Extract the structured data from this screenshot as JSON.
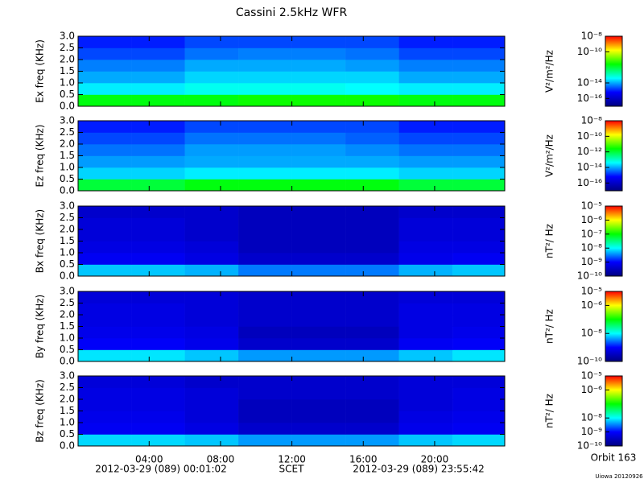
{
  "title": "Cassini 2.5kHz WFR",
  "start_label": "2012-03-29 (089) 00:01:02",
  "axis_label": "SCET",
  "end_label": "2012-03-29 (089) 23:55:42",
  "orbit": "Orbit 163",
  "credit": "Uiowa 20120926",
  "chart_data": [
    {
      "type": "heatmap",
      "ylabel": "Ex freq (KHz)",
      "zlabel": "V²/m²/Hz",
      "xlim": [
        0.0172,
        23.928
      ],
      "ylim": [
        0,
        3
      ],
      "yticks": [
        {
          "value": 0,
          "label": "0.0"
        },
        0.5,
        {
          "value": 1,
          "label": "1.0"
        },
        1.5,
        {
          "value": 2,
          "label": "2.0"
        },
        2.5,
        {
          "value": 3,
          "label": "3.0"
        }
      ],
      "xbins": [
        0.0172,
        3,
        6,
        9,
        12,
        15,
        18,
        21,
        23.928
      ],
      "ybins": [
        0,
        0.5,
        1,
        1.5,
        2,
        2.5,
        3
      ],
      "z": [
        [
          2e-12,
          2e-12,
          2e-12,
          3e-12,
          3e-12,
          3e-12,
          2e-12,
          2e-12
        ],
        [
          3e-14,
          3e-14,
          5e-14,
          5e-14,
          5e-14,
          4e-14,
          3e-14,
          3e-14
        ],
        [
          1e-14,
          1e-14,
          2e-14,
          2e-14,
          2e-14,
          2e-14,
          1e-14,
          1e-14
        ],
        [
          5e-15,
          5e-15,
          1e-14,
          1e-14,
          1e-14,
          8e-15,
          5e-15,
          5e-15
        ],
        [
          2e-15,
          2e-15,
          4e-15,
          5e-15,
          5e-15,
          4e-15,
          2e-15,
          2e-15
        ],
        [
          1e-15,
          1e-15,
          2e-15,
          2e-15,
          2e-15,
          2e-15,
          1e-15,
          1e-15
        ]
      ],
      "zlim": [
        1e-17,
        1e-08
      ],
      "zscale": "log",
      "zticks": [
        {
          "value": 1e-08,
          "label": "10⁻⁸"
        },
        {
          "value": 1e-10,
          "label": "10⁻¹⁰"
        },
        {
          "value": 1e-14,
          "label": "10⁻¹⁴"
        },
        {
          "value": 1e-16,
          "label": "10⁻¹⁶"
        }
      ],
      "colormap": [
        "#000080",
        "#0000ff",
        "#00ffff",
        "#00ff00",
        "#ffff00",
        "#ff0000"
      ]
    },
    {
      "type": "heatmap",
      "ylabel": "Ez freq (KHz)",
      "zlabel": "V²/m²/Hz",
      "xlim": [
        0.0172,
        23.928
      ],
      "ylim": [
        0,
        3
      ],
      "yticks": [
        {
          "value": 0,
          "label": "0.0"
        },
        0.5,
        {
          "value": 1,
          "label": "1.0"
        },
        1.5,
        {
          "value": 2,
          "label": "2.0"
        },
        2.5,
        {
          "value": 3,
          "label": "3.0"
        }
      ],
      "xbins": [
        0.0172,
        3,
        6,
        9,
        12,
        15,
        18,
        21,
        23.928
      ],
      "ybins": [
        0,
        0.5,
        1,
        1.5,
        2,
        2.5,
        3
      ],
      "z": [
        [
          1e-12,
          1e-12,
          2e-12,
          2e-12,
          2e-12,
          2e-12,
          1e-12,
          1e-12
        ],
        [
          2e-14,
          2e-14,
          3e-14,
          3e-14,
          3e-14,
          3e-14,
          2e-14,
          2e-14
        ],
        [
          8e-15,
          8e-15,
          1e-14,
          1e-14,
          1e-14,
          1e-14,
          8e-15,
          8e-15
        ],
        [
          4e-15,
          4e-15,
          8e-15,
          8e-15,
          8e-15,
          6e-15,
          4e-15,
          4e-15
        ],
        [
          2e-15,
          2e-15,
          4e-15,
          4e-15,
          4e-15,
          3e-15,
          2e-15,
          2e-15
        ],
        [
          1e-15,
          1e-15,
          2e-15,
          2e-15,
          2e-15,
          2e-15,
          1e-15,
          1e-15
        ]
      ],
      "zlim": [
        1e-17,
        1e-08
      ],
      "zscale": "log",
      "zticks": [
        {
          "value": 1e-08,
          "label": "10⁻⁸"
        },
        {
          "value": 1e-10,
          "label": "10⁻¹⁰"
        },
        {
          "value": 1e-12,
          "label": "10⁻¹²"
        },
        {
          "value": 1e-14,
          "label": "10⁻¹⁴"
        },
        {
          "value": 1e-16,
          "label": "10⁻¹⁶"
        }
      ],
      "colormap": [
        "#000080",
        "#0000ff",
        "#00ffff",
        "#00ff00",
        "#ffff00",
        "#ff0000"
      ]
    },
    {
      "type": "heatmap",
      "ylabel": "Bx freq (KHz)",
      "zlabel": "nT²/ Hz",
      "xlim": [
        0.0172,
        23.928
      ],
      "ylim": [
        0,
        3
      ],
      "yticks": [
        {
          "value": 0,
          "label": "0.0"
        },
        0.5,
        {
          "value": 1,
          "label": "1.0"
        },
        1.5,
        {
          "value": 2,
          "label": "2.0"
        },
        2.5,
        {
          "value": 3,
          "label": "3.0"
        }
      ],
      "xbins": [
        0.0172,
        3,
        6,
        9,
        12,
        15,
        18,
        21,
        23.928
      ],
      "ybins": [
        0,
        0.5,
        1,
        1.5,
        2,
        2.5,
        3
      ],
      "z": [
        [
          6e-09,
          6e-09,
          5e-09,
          3e-09,
          3e-09,
          3e-09,
          5e-09,
          6e-09
        ],
        [
          8e-10,
          8e-10,
          6e-10,
          4e-10,
          4e-10,
          4e-10,
          7e-10,
          8e-10
        ],
        [
          6e-10,
          6e-10,
          5e-10,
          3e-10,
          3e-10,
          3e-10,
          6e-10,
          6e-10
        ],
        [
          5e-10,
          5e-10,
          4e-10,
          3e-10,
          3e-10,
          3e-10,
          5e-10,
          5e-10
        ],
        [
          5e-10,
          5e-10,
          4e-10,
          3e-10,
          3e-10,
          3e-10,
          5e-10,
          5e-10
        ],
        [
          4e-10,
          4e-10,
          4e-10,
          3e-10,
          3e-10,
          3e-10,
          4e-10,
          4e-10
        ]
      ],
      "zlim": [
        1e-10,
        1e-05
      ],
      "zscale": "log",
      "zticks": [
        {
          "value": 1e-05,
          "label": "10⁻⁵"
        },
        {
          "value": 1e-06,
          "label": "10⁻⁶"
        },
        {
          "value": 1e-07,
          "label": "10⁻⁷"
        },
        {
          "value": 1e-08,
          "label": "10⁻⁸"
        },
        {
          "value": 1e-09,
          "label": "10⁻⁹"
        },
        {
          "value": 1e-10,
          "label": "10⁻¹⁰"
        }
      ],
      "colormap": [
        "#000080",
        "#0000ff",
        "#00ffff",
        "#00ff00",
        "#ffff00",
        "#ff0000"
      ]
    },
    {
      "type": "heatmap",
      "ylabel": "By freq (KHz)",
      "zlabel": "nT²/ Hz",
      "xlim": [
        0.0172,
        23.928
      ],
      "ylim": [
        0,
        3
      ],
      "yticks": [
        {
          "value": 0,
          "label": "0.0"
        },
        0.5,
        {
          "value": 1,
          "label": "1.0"
        },
        1.5,
        {
          "value": 2,
          "label": "2.0"
        },
        2.5,
        {
          "value": 3,
          "label": "3.0"
        }
      ],
      "xbins": [
        0.0172,
        3,
        6,
        9,
        12,
        15,
        18,
        21,
        23.928
      ],
      "ybins": [
        0,
        0.5,
        1,
        1.5,
        2,
        2.5,
        3
      ],
      "z": [
        [
          8e-09,
          8e-09,
          6e-09,
          4e-09,
          4e-09,
          4e-09,
          6e-09,
          8e-09
        ],
        [
          9e-10,
          9e-10,
          7e-10,
          4e-10,
          4e-10,
          4e-10,
          8e-10,
          9e-10
        ],
        [
          7e-10,
          7e-10,
          6e-10,
          3e-10,
          3e-10,
          3e-10,
          6e-10,
          7e-10
        ],
        [
          6e-10,
          6e-10,
          5e-10,
          4e-10,
          4e-10,
          4e-10,
          6e-10,
          6e-10
        ],
        [
          6e-10,
          6e-10,
          5e-10,
          4e-10,
          4e-10,
          4e-10,
          6e-10,
          6e-10
        ],
        [
          5e-10,
          5e-10,
          5e-10,
          4e-10,
          4e-10,
          4e-10,
          5e-10,
          5e-10
        ]
      ],
      "zlim": [
        1e-10,
        1e-05
      ],
      "zscale": "log",
      "zticks": [
        {
          "value": 1e-05,
          "label": "10⁻⁵"
        },
        {
          "value": 1e-06,
          "label": "10⁻⁶"
        },
        {
          "value": 1e-08,
          "label": "10⁻⁸"
        },
        {
          "value": 1e-10,
          "label": "10⁻¹⁰"
        }
      ],
      "colormap": [
        "#000080",
        "#0000ff",
        "#00ffff",
        "#00ff00",
        "#ffff00",
        "#ff0000"
      ]
    },
    {
      "type": "heatmap",
      "ylabel": "Bz freq (KHz)",
      "zlabel": "nT²/ Hz",
      "xlim": [
        0.0172,
        23.928
      ],
      "ylim": [
        0,
        3
      ],
      "yticks": [
        {
          "value": 0,
          "label": "0.0"
        },
        0.5,
        {
          "value": 1,
          "label": "1.0"
        },
        1.5,
        {
          "value": 2,
          "label": "2.0"
        },
        2.5,
        {
          "value": 3,
          "label": "3.0"
        }
      ],
      "xticks": [
        {
          "value": 4,
          "label": "04:00"
        },
        {
          "value": 8,
          "label": "08:00"
        },
        {
          "value": 12,
          "label": "12:00"
        },
        {
          "value": 16,
          "label": "16:00"
        },
        {
          "value": 20,
          "label": "20:00"
        }
      ],
      "xbins": [
        0.0172,
        3,
        6,
        9,
        12,
        15,
        18,
        21,
        23.928
      ],
      "ybins": [
        0,
        0.5,
        1,
        1.5,
        2,
        2.5,
        3
      ],
      "z": [
        [
          7e-09,
          7e-09,
          6e-09,
          4e-09,
          4e-09,
          4e-09,
          6e-09,
          7e-09
        ],
        [
          8e-10,
          8e-10,
          6e-10,
          4e-10,
          4e-10,
          4e-10,
          7e-10,
          8e-10
        ],
        [
          7e-10,
          7e-10,
          5e-10,
          3e-10,
          3e-10,
          3e-10,
          6e-10,
          7e-10
        ],
        [
          6e-10,
          6e-10,
          5e-10,
          3e-10,
          3e-10,
          3e-10,
          5e-10,
          6e-10
        ],
        [
          6e-10,
          6e-10,
          5e-10,
          4e-10,
          4e-10,
          4e-10,
          5e-10,
          6e-10
        ],
        [
          5e-10,
          5e-10,
          4e-10,
          4e-10,
          4e-10,
          4e-10,
          5e-10,
          5e-10
        ]
      ],
      "zlim": [
        1e-10,
        1e-05
      ],
      "zscale": "log",
      "zticks": [
        {
          "value": 1e-05,
          "label": "10⁻⁵"
        },
        {
          "value": 1e-06,
          "label": "10⁻⁶"
        },
        {
          "value": 1e-08,
          "label": "10⁻⁸"
        },
        {
          "value": 1e-09,
          "label": "10⁻⁹"
        },
        {
          "value": 1e-10,
          "label": "10⁻¹⁰"
        }
      ],
      "colormap": [
        "#000080",
        "#0000ff",
        "#00ffff",
        "#00ff00",
        "#ffff00",
        "#ff0000"
      ]
    }
  ]
}
